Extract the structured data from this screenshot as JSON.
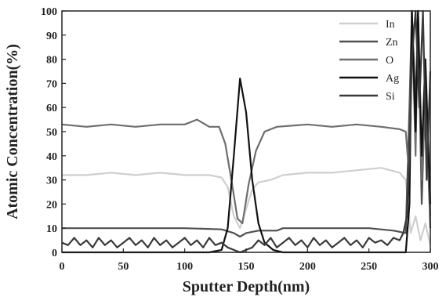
{
  "chart_data": {
    "type": "line",
    "title": "",
    "xlabel": "Sputter Depth(nm)",
    "ylabel": "Atomic Concentration(%)",
    "xlim": [
      0,
      300
    ],
    "ylim": [
      0,
      100
    ],
    "xticks": [
      "0",
      "50",
      "100",
      "150",
      "200",
      "250",
      "300"
    ],
    "yticks": [
      "0",
      "10",
      "20",
      "30",
      "40",
      "50",
      "60",
      "70",
      "80",
      "90",
      "100"
    ],
    "grid": false,
    "legend_position": "top-right",
    "series": [
      {
        "name": "In",
        "color": "#cfcfcf",
        "points": [
          [
            0,
            32
          ],
          [
            20,
            32
          ],
          [
            40,
            33
          ],
          [
            60,
            32
          ],
          [
            80,
            33
          ],
          [
            100,
            32
          ],
          [
            120,
            32
          ],
          [
            130,
            31
          ],
          [
            135,
            27
          ],
          [
            140,
            15
          ],
          [
            145,
            10
          ],
          [
            150,
            18
          ],
          [
            155,
            26
          ],
          [
            160,
            29
          ],
          [
            170,
            30
          ],
          [
            180,
            32
          ],
          [
            200,
            33
          ],
          [
            220,
            33
          ],
          [
            240,
            34
          ],
          [
            260,
            35
          ],
          [
            275,
            33
          ],
          [
            280,
            30
          ],
          [
            284,
            8
          ],
          [
            288,
            15
          ],
          [
            292,
            5
          ],
          [
            296,
            12
          ],
          [
            300,
            3
          ]
        ]
      },
      {
        "name": "Zn",
        "color": "#505050",
        "points": [
          [
            0,
            10
          ],
          [
            50,
            10
          ],
          [
            100,
            10
          ],
          [
            130,
            9.5
          ],
          [
            140,
            8
          ],
          [
            145,
            6.5
          ],
          [
            150,
            8
          ],
          [
            160,
            9
          ],
          [
            175,
            9
          ],
          [
            180,
            10
          ],
          [
            200,
            10
          ],
          [
            250,
            10
          ],
          [
            270,
            9
          ],
          [
            280,
            8
          ],
          [
            283,
            60
          ],
          [
            285,
            100
          ],
          [
            288,
            60
          ],
          [
            290,
            100
          ],
          [
            293,
            20
          ],
          [
            296,
            70
          ],
          [
            300,
            10
          ]
        ]
      },
      {
        "name": "O",
        "color": "#6e6e6e",
        "points": [
          [
            0,
            53
          ],
          [
            20,
            52
          ],
          [
            40,
            53
          ],
          [
            60,
            52
          ],
          [
            80,
            53
          ],
          [
            100,
            53
          ],
          [
            110,
            55
          ],
          [
            120,
            52
          ],
          [
            128,
            52
          ],
          [
            133,
            45
          ],
          [
            138,
            30
          ],
          [
            143,
            14
          ],
          [
            147,
            12
          ],
          [
            152,
            28
          ],
          [
            158,
            42
          ],
          [
            165,
            50
          ],
          [
            175,
            52
          ],
          [
            200,
            53
          ],
          [
            220,
            52
          ],
          [
            240,
            53
          ],
          [
            260,
            52
          ],
          [
            275,
            51
          ],
          [
            280,
            50
          ],
          [
            283,
            30
          ],
          [
            285,
            100
          ],
          [
            288,
            40
          ],
          [
            290,
            100
          ],
          [
            293,
            30
          ],
          [
            296,
            60
          ],
          [
            300,
            15
          ]
        ]
      },
      {
        "name": "Ag",
        "color": "#111111",
        "points": [
          [
            0,
            0
          ],
          [
            120,
            0
          ],
          [
            130,
            1
          ],
          [
            135,
            10
          ],
          [
            140,
            40
          ],
          [
            145,
            72
          ],
          [
            150,
            58
          ],
          [
            155,
            30
          ],
          [
            160,
            12
          ],
          [
            165,
            4
          ],
          [
            172,
            1
          ],
          [
            180,
            0
          ],
          [
            280,
            0
          ],
          [
            283,
            20
          ],
          [
            285,
            100
          ],
          [
            288,
            50
          ],
          [
            290,
            100
          ],
          [
            293,
            40
          ],
          [
            296,
            80
          ],
          [
            300,
            20
          ]
        ]
      },
      {
        "name": "Si",
        "color": "#3a3a3a",
        "points": [
          [
            0,
            4
          ],
          [
            5,
            3
          ],
          [
            10,
            6
          ],
          [
            15,
            3
          ],
          [
            20,
            5
          ],
          [
            25,
            2
          ],
          [
            30,
            6
          ],
          [
            35,
            3
          ],
          [
            40,
            5
          ],
          [
            45,
            2
          ],
          [
            50,
            4
          ],
          [
            55,
            6
          ],
          [
            60,
            3
          ],
          [
            65,
            5
          ],
          [
            70,
            2
          ],
          [
            75,
            6
          ],
          [
            80,
            3
          ],
          [
            85,
            5
          ],
          [
            90,
            2
          ],
          [
            95,
            4
          ],
          [
            100,
            6
          ],
          [
            105,
            3
          ],
          [
            110,
            5
          ],
          [
            115,
            2
          ],
          [
            120,
            6
          ],
          [
            125,
            3
          ],
          [
            130,
            4
          ],
          [
            135,
            2
          ],
          [
            140,
            1
          ],
          [
            145,
            0
          ],
          [
            150,
            1
          ],
          [
            155,
            2
          ],
          [
            160,
            5
          ],
          [
            165,
            3
          ],
          [
            170,
            6
          ],
          [
            175,
            2
          ],
          [
            180,
            4
          ],
          [
            185,
            6
          ],
          [
            190,
            3
          ],
          [
            195,
            5
          ],
          [
            200,
            2
          ],
          [
            205,
            6
          ],
          [
            210,
            3
          ],
          [
            215,
            5
          ],
          [
            220,
            2
          ],
          [
            225,
            4
          ],
          [
            230,
            6
          ],
          [
            235,
            3
          ],
          [
            240,
            5
          ],
          [
            245,
            2
          ],
          [
            250,
            6
          ],
          [
            255,
            4
          ],
          [
            260,
            5
          ],
          [
            265,
            3
          ],
          [
            270,
            6
          ],
          [
            275,
            5
          ],
          [
            278,
            8
          ],
          [
            281,
            15
          ],
          [
            283,
            40
          ],
          [
            285,
            80
          ],
          [
            288,
            100
          ],
          [
            291,
            60
          ],
          [
            294,
            100
          ],
          [
            297,
            30
          ],
          [
            300,
            75
          ]
        ]
      }
    ]
  }
}
